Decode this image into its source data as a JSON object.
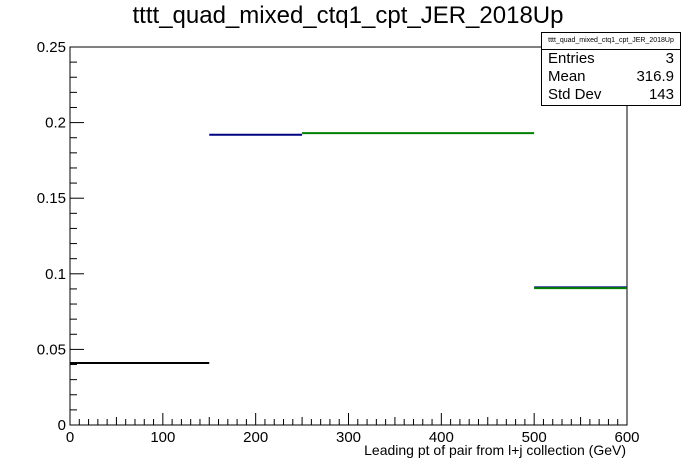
{
  "chart_data": {
    "type": "bar",
    "title": "tttt_quad_mixed_ctq1_cpt_JER_2018Up",
    "xlabel": "Leading pt of pair from l+j collection (GeV)",
    "ylabel": "",
    "xlim": [
      0,
      600
    ],
    "ylim": [
      0,
      0.25
    ],
    "x_ticks": [
      "0",
      "100",
      "200",
      "300",
      "400",
      "500",
      "600"
    ],
    "y_ticks": [
      "0",
      "0.05",
      "0.1",
      "0.15",
      "0.2",
      "0.25"
    ],
    "grid": false,
    "series": [
      {
        "style": "histogram",
        "color": "#000000",
        "bins": [
          {
            "x_low": 0,
            "x_high": 150,
            "value": 0.041
          }
        ]
      },
      {
        "style": "histogram",
        "color": "#000080",
        "bins": [
          {
            "x_low": 150,
            "x_high": 250,
            "value": 0.192
          },
          {
            "x_low": 500,
            "x_high": 600,
            "value": 0.091
          }
        ]
      },
      {
        "style": "histogram",
        "color": "#008000",
        "bins": [
          {
            "x_low": 250,
            "x_high": 500,
            "value": 0.193
          },
          {
            "x_low": 500,
            "x_high": 600,
            "value": 0.0905
          }
        ]
      }
    ]
  },
  "stats_box": {
    "title": "tttt_quad_mixed_ctq1_cpt_JER_2018Up",
    "rows": [
      {
        "label": "Entries",
        "value": "3"
      },
      {
        "label": "Mean",
        "value": "316.9"
      },
      {
        "label": "Std Dev",
        "value": "143"
      }
    ]
  }
}
